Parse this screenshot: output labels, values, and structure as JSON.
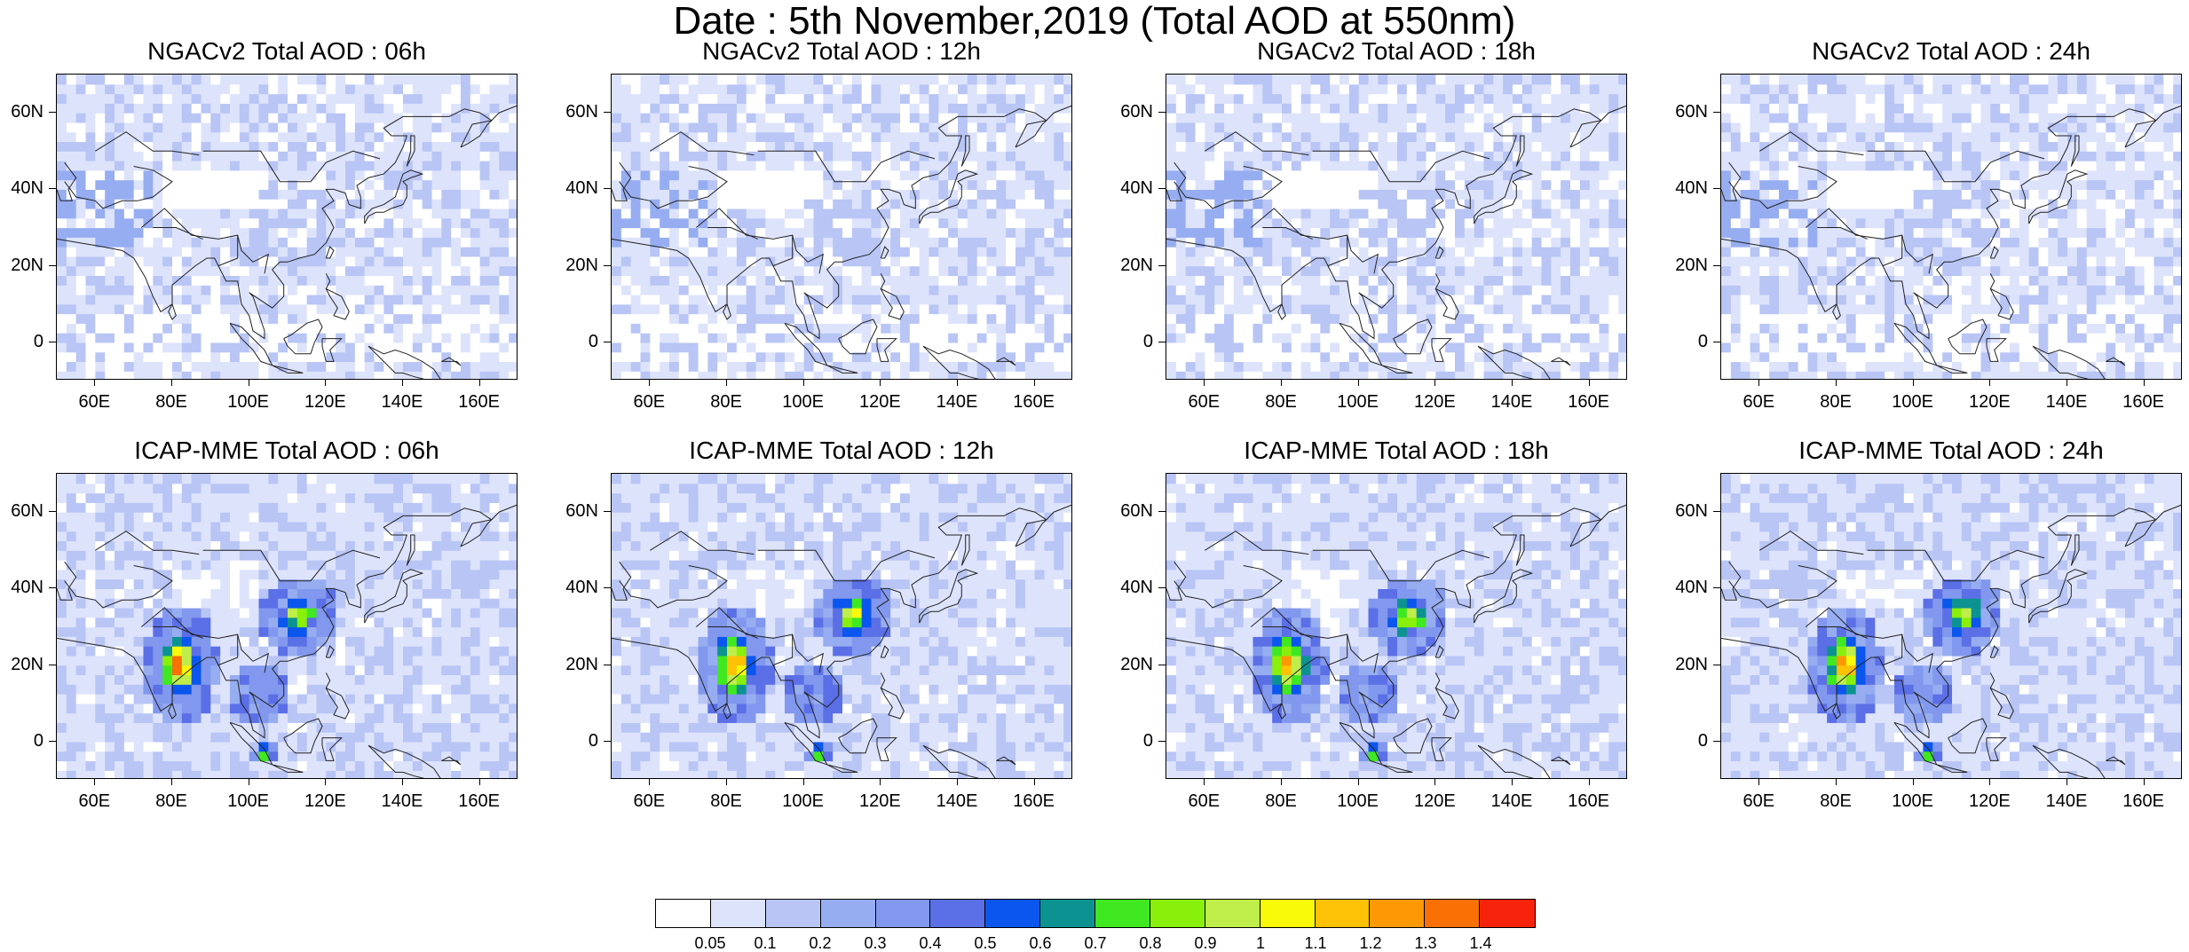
{
  "title": "Date : 5th November,2019 (Total AOD at 550nm)",
  "panels": [
    {
      "title": "NGACv2 Total AOD : 06h",
      "model": "NGACv2",
      "lead": "06h"
    },
    {
      "title": "NGACv2 Total AOD : 12h",
      "model": "NGACv2",
      "lead": "12h"
    },
    {
      "title": "NGACv2 Total AOD : 18h",
      "model": "NGACv2",
      "lead": "18h"
    },
    {
      "title": "NGACv2 Total AOD : 24h",
      "model": "NGACv2",
      "lead": "24h"
    },
    {
      "title": "ICAP-MME Total AOD : 06h",
      "model": "ICAP-MME",
      "lead": "06h"
    },
    {
      "title": "ICAP-MME Total AOD : 12h",
      "model": "ICAP-MME",
      "lead": "12h"
    },
    {
      "title": "ICAP-MME Total AOD : 18h",
      "model": "ICAP-MME",
      "lead": "18h"
    },
    {
      "title": "ICAP-MME Total AOD : 24h",
      "model": "ICAP-MME",
      "lead": "24h"
    }
  ],
  "axes": {
    "lon_ticks": [
      "60E",
      "80E",
      "100E",
      "120E",
      "140E",
      "160E"
    ],
    "lon_values": [
      60,
      80,
      100,
      120,
      140,
      160
    ],
    "lat_ticks": [
      "60N",
      "40N",
      "20N",
      "0"
    ],
    "lat_values": [
      60,
      40,
      20,
      0
    ],
    "lon_range": [
      50,
      170
    ],
    "lat_range": [
      -10,
      70
    ]
  },
  "colorbar": {
    "labels": [
      "0.05",
      "0.1",
      "0.2",
      "0.3",
      "0.4",
      "0.5",
      "0.6",
      "0.7",
      "0.8",
      "0.9",
      "1",
      "1.1",
      "1.2",
      "1.3",
      "1.4"
    ],
    "colors": [
      "#ffffff",
      "#dde3fb",
      "#b8c5f5",
      "#97adf1",
      "#8198ee",
      "#5b6fe6",
      "#0a56ee",
      "#0c9391",
      "#40e821",
      "#88f00b",
      "#bfee4a",
      "#f9f90a",
      "#fdc105",
      "#fc9905",
      "#f97004",
      "#f6230a"
    ]
  },
  "map_colors": {
    "low": "#ffffff",
    "base": "#dde3fb",
    "mid": "#b8c5f5",
    "mid2": "#97adf1",
    "high": "#8198ee",
    "coast": "#222222"
  }
}
